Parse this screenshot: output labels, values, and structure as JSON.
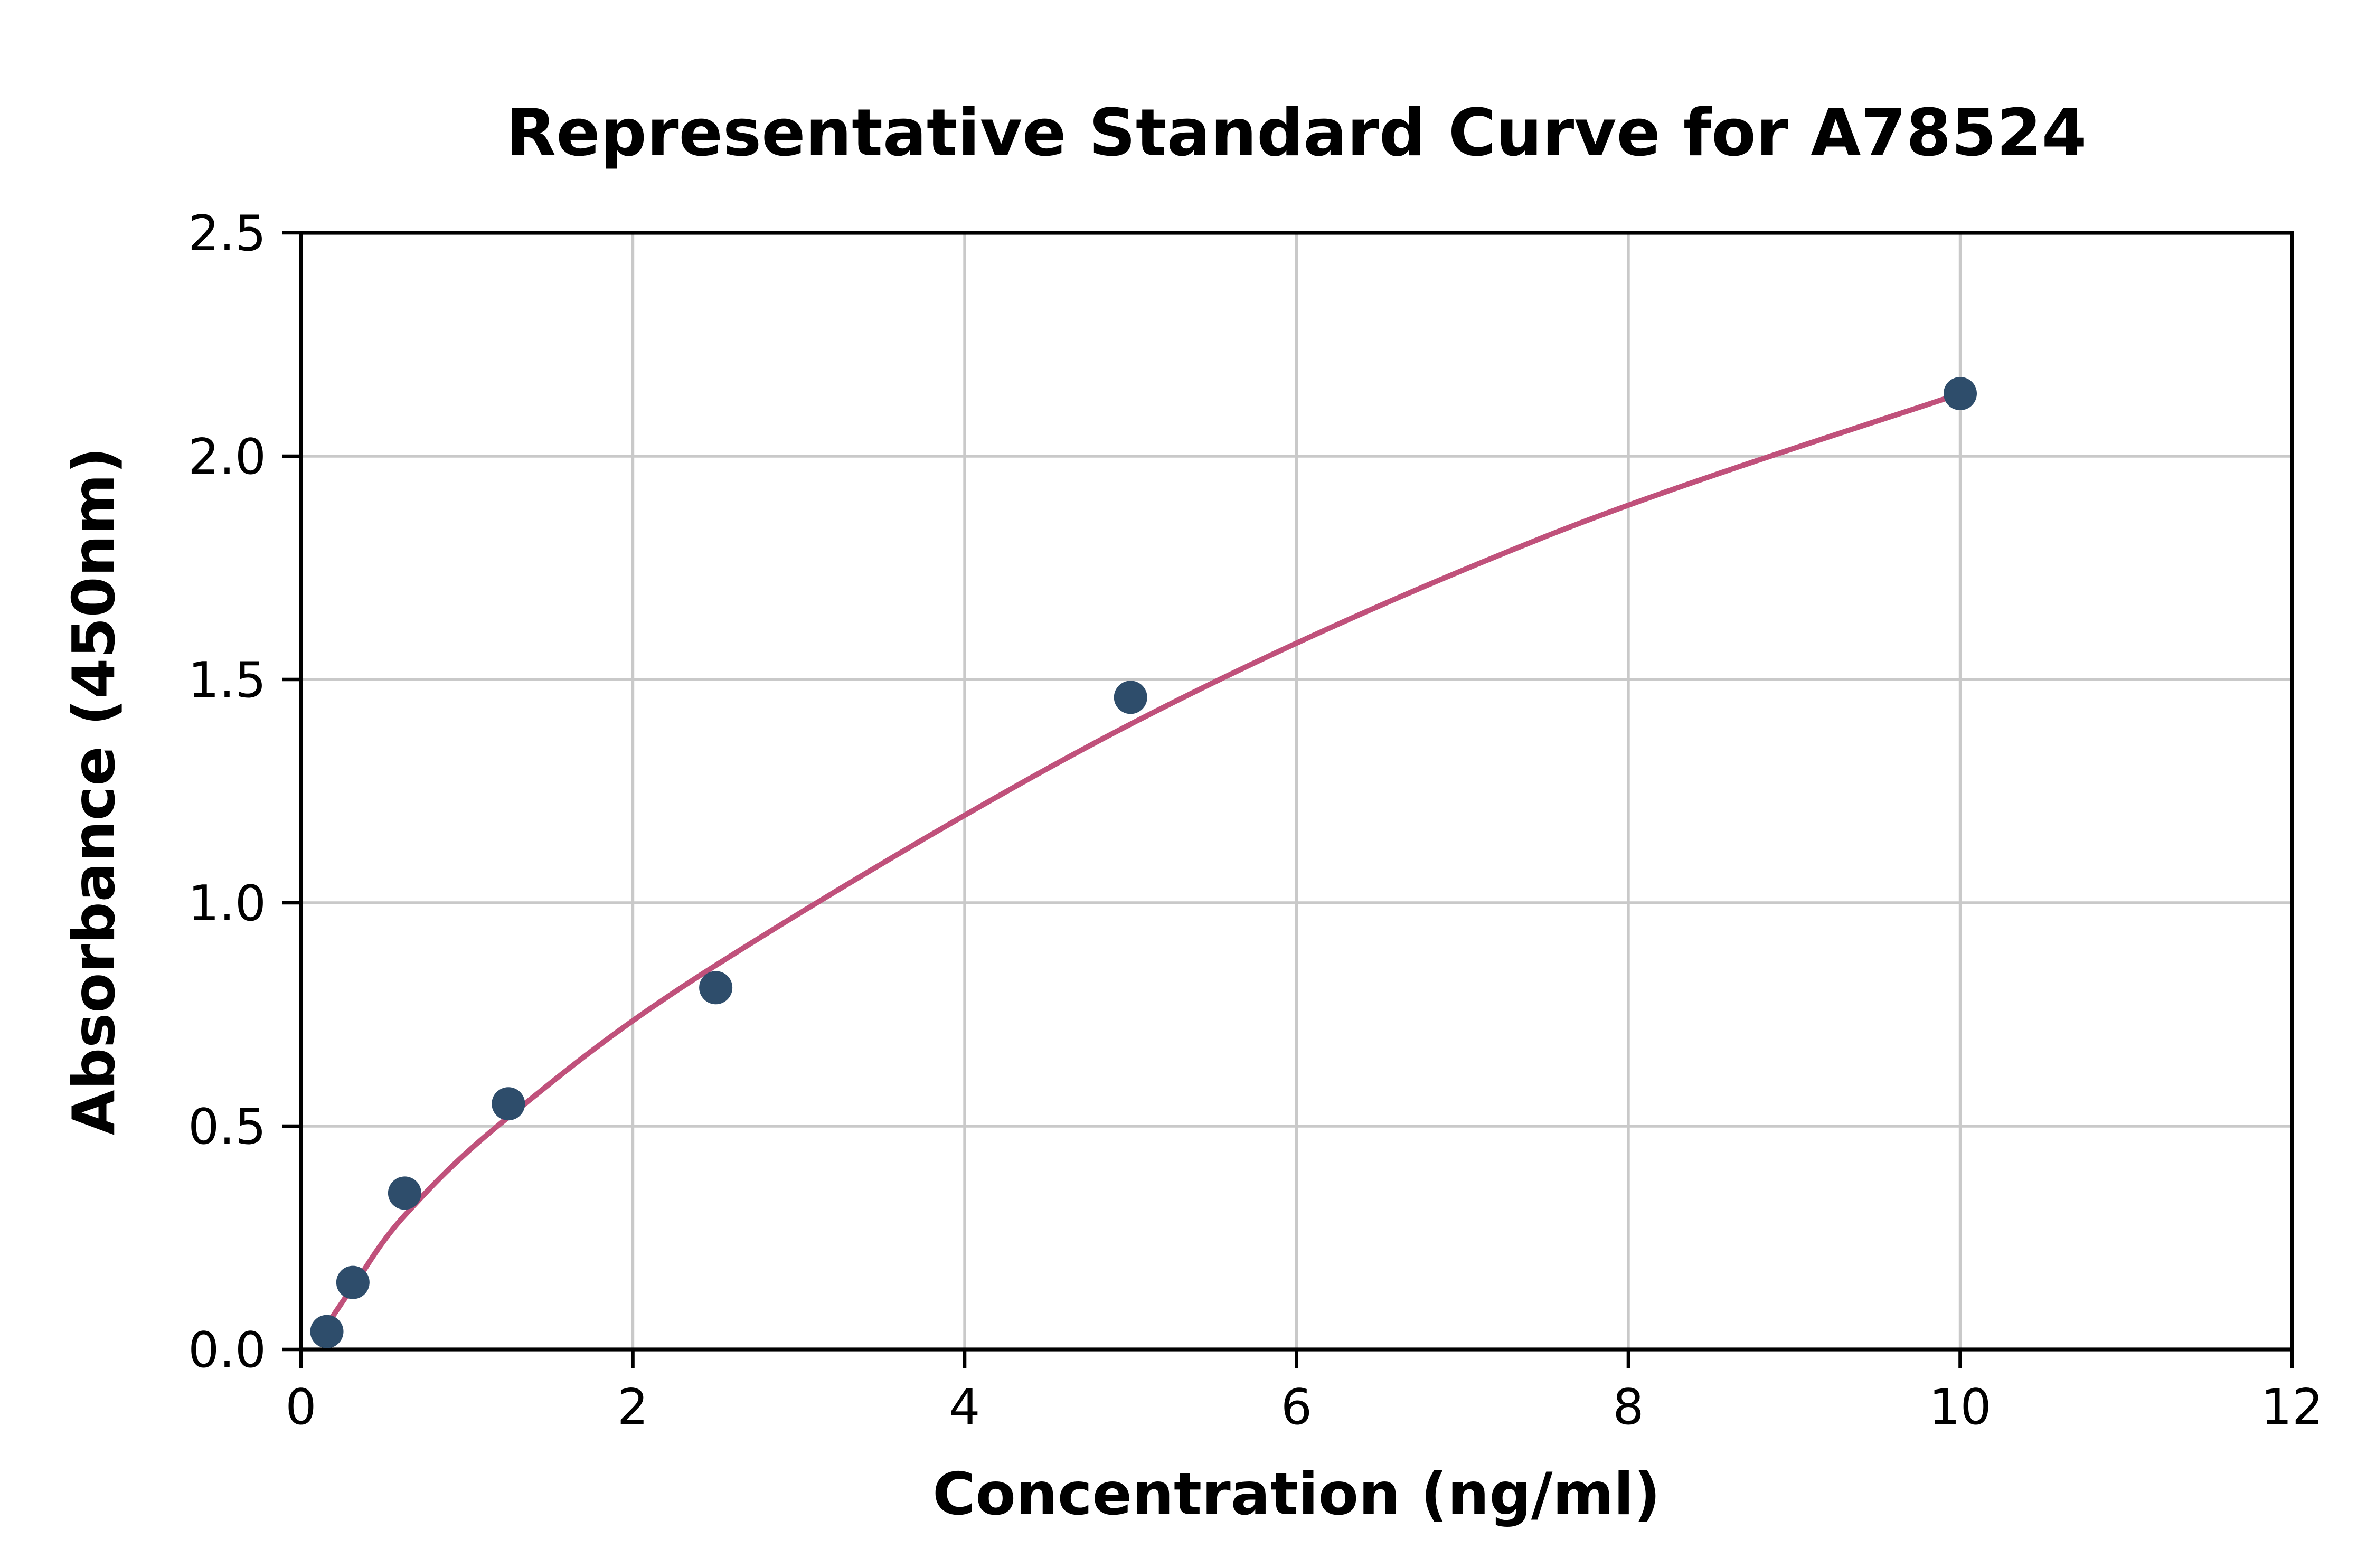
{
  "chart_data": {
    "type": "scatter",
    "title": "Representative Standard Curve for A78524",
    "xlabel": "Concentration (ng/ml)",
    "ylabel": "Absorbance (450nm)",
    "xlim": [
      0,
      12
    ],
    "ylim": [
      0,
      2.5
    ],
    "x_ticks": [
      0,
      2,
      4,
      6,
      8,
      10,
      12
    ],
    "x_tick_labels": [
      "0",
      "2",
      "4",
      "6",
      "8",
      "10",
      "12"
    ],
    "y_ticks": [
      0,
      0.5,
      1,
      1.5,
      2,
      2.5
    ],
    "y_tick_labels": [
      "0.0",
      "0.5",
      "1.0",
      "1.5",
      "2.0",
      "2.5"
    ],
    "grid": true,
    "legend_position": "none",
    "series": [
      {
        "name": "standard-points",
        "type": "scatter",
        "color": "#2e4d6b",
        "x": [
          0.156,
          0.313,
          0.625,
          1.25,
          2.5,
          5,
          10
        ],
        "y": [
          0.04,
          0.15,
          0.35,
          0.55,
          0.81,
          1.46,
          2.14
        ]
      },
      {
        "name": "fitted-curve",
        "type": "line",
        "color": "#c0517b",
        "points": [
          [
            0.1,
            0.03
          ],
          [
            0.156,
            0.055
          ],
          [
            0.313,
            0.14
          ],
          [
            0.625,
            0.3
          ],
          [
            1.25,
            0.52
          ],
          [
            2.5,
            0.86
          ],
          [
            5.0,
            1.4
          ],
          [
            7.5,
            1.82
          ],
          [
            10.0,
            2.14
          ]
        ]
      }
    ],
    "styles": {
      "grid_color": "#c9c9c9",
      "axis_color": "#000000",
      "background": "#ffffff",
      "point_radius": 10.5,
      "curve_width": 3.4
    }
  }
}
